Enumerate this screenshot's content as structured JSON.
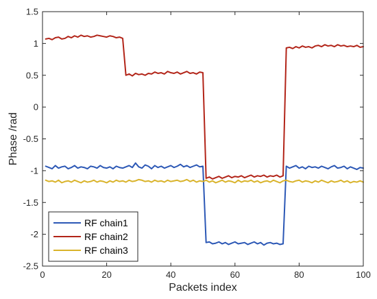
{
  "chart_data": {
    "type": "line",
    "title": "",
    "xlabel": "Packets index",
    "ylabel": "Phase /rad",
    "xlim": [
      0,
      100
    ],
    "ylim": [
      -2.5,
      1.5
    ],
    "xticks": [
      0,
      20,
      40,
      60,
      80,
      100
    ],
    "yticks": [
      -2.5,
      -2,
      -1.5,
      -1,
      -0.5,
      0,
      0.5,
      1,
      1.5
    ],
    "xtick_labels": [
      "0",
      "20",
      "40",
      "60",
      "80",
      "100"
    ],
    "ytick_labels": [
      "-2.5",
      "-2",
      "-1.5",
      "-1",
      "-0.5",
      "0",
      "0.5",
      "1",
      "1.5"
    ],
    "grid": false,
    "legend_position": "bottom-left",
    "x": [
      1,
      2,
      3,
      4,
      5,
      6,
      7,
      8,
      9,
      10,
      11,
      12,
      13,
      14,
      15,
      16,
      17,
      18,
      19,
      20,
      21,
      22,
      23,
      24,
      25,
      26,
      27,
      28,
      29,
      30,
      31,
      32,
      33,
      34,
      35,
      36,
      37,
      38,
      39,
      40,
      41,
      42,
      43,
      44,
      45,
      46,
      47,
      48,
      49,
      50,
      51,
      52,
      53,
      54,
      55,
      56,
      57,
      58,
      59,
      60,
      61,
      62,
      63,
      64,
      65,
      66,
      67,
      68,
      69,
      70,
      71,
      72,
      73,
      74,
      75,
      76,
      77,
      78,
      79,
      80,
      81,
      82,
      83,
      84,
      85,
      86,
      87,
      88,
      89,
      90,
      91,
      92,
      93,
      94,
      95,
      96,
      97,
      98,
      99,
      100
    ],
    "series": [
      {
        "name": "RF chain1",
        "color": "#2b57b5",
        "values": [
          -0.93,
          -0.95,
          -0.97,
          -0.92,
          -0.96,
          -0.94,
          -0.93,
          -0.97,
          -0.95,
          -0.92,
          -0.96,
          -0.94,
          -0.95,
          -0.97,
          -0.93,
          -0.94,
          -0.96,
          -0.92,
          -0.95,
          -0.96,
          -0.94,
          -0.97,
          -0.93,
          -0.95,
          -0.96,
          -0.94,
          -0.92,
          -0.95,
          -0.88,
          -0.94,
          -0.96,
          -0.91,
          -0.93,
          -0.97,
          -0.92,
          -0.95,
          -0.93,
          -0.96,
          -0.94,
          -0.92,
          -0.95,
          -0.93,
          -0.9,
          -0.94,
          -0.92,
          -0.95,
          -0.93,
          -0.91,
          -0.94,
          -0.93,
          -2.13,
          -2.12,
          -2.15,
          -2.14,
          -2.12,
          -2.15,
          -2.13,
          -2.16,
          -2.14,
          -2.12,
          -2.15,
          -2.14,
          -2.13,
          -2.16,
          -2.14,
          -2.12,
          -2.15,
          -2.13,
          -2.17,
          -2.14,
          -2.13,
          -2.15,
          -2.14,
          -2.16,
          -2.15,
          -0.93,
          -0.96,
          -0.94,
          -0.92,
          -0.96,
          -0.94,
          -0.97,
          -0.93,
          -0.95,
          -0.94,
          -0.96,
          -0.93,
          -0.95,
          -0.97,
          -0.94,
          -0.92,
          -0.96,
          -0.95,
          -0.93,
          -0.97,
          -0.94,
          -0.96,
          -0.98,
          -0.95,
          -0.96
        ]
      },
      {
        "name": "RF chain2",
        "color": "#b22418",
        "values": [
          1.07,
          1.08,
          1.06,
          1.09,
          1.1,
          1.07,
          1.08,
          1.11,
          1.09,
          1.12,
          1.1,
          1.13,
          1.11,
          1.12,
          1.1,
          1.11,
          1.13,
          1.12,
          1.11,
          1.1,
          1.12,
          1.11,
          1.09,
          1.1,
          1.08,
          0.5,
          0.52,
          0.49,
          0.53,
          0.51,
          0.52,
          0.5,
          0.53,
          0.52,
          0.55,
          0.53,
          0.54,
          0.52,
          0.56,
          0.54,
          0.53,
          0.55,
          0.52,
          0.54,
          0.56,
          0.53,
          0.54,
          0.52,
          0.55,
          0.54,
          -1.12,
          -1.1,
          -1.13,
          -1.11,
          -1.09,
          -1.12,
          -1.1,
          -1.08,
          -1.11,
          -1.09,
          -1.1,
          -1.08,
          -1.11,
          -1.09,
          -1.07,
          -1.1,
          -1.08,
          -1.09,
          -1.07,
          -1.1,
          -1.08,
          -1.09,
          -1.07,
          -1.1,
          -1.08,
          0.93,
          0.94,
          0.92,
          0.95,
          0.93,
          0.96,
          0.94,
          0.95,
          0.93,
          0.96,
          0.97,
          0.95,
          0.98,
          0.96,
          0.97,
          0.95,
          0.98,
          0.96,
          0.97,
          0.95,
          0.96,
          0.95,
          0.97,
          0.94,
          0.95
        ]
      },
      {
        "name": "RF chain3",
        "color": "#d9b32a",
        "values": [
          -1.15,
          -1.17,
          -1.16,
          -1.18,
          -1.15,
          -1.19,
          -1.17,
          -1.16,
          -1.18,
          -1.15,
          -1.17,
          -1.19,
          -1.16,
          -1.18,
          -1.17,
          -1.15,
          -1.18,
          -1.16,
          -1.17,
          -1.19,
          -1.16,
          -1.18,
          -1.15,
          -1.17,
          -1.16,
          -1.18,
          -1.15,
          -1.17,
          -1.16,
          -1.14,
          -1.15,
          -1.17,
          -1.16,
          -1.18,
          -1.15,
          -1.17,
          -1.16,
          -1.18,
          -1.15,
          -1.17,
          -1.16,
          -1.15,
          -1.17,
          -1.16,
          -1.14,
          -1.17,
          -1.15,
          -1.18,
          -1.16,
          -1.17,
          -1.15,
          -1.18,
          -1.16,
          -1.19,
          -1.17,
          -1.15,
          -1.18,
          -1.16,
          -1.17,
          -1.19,
          -1.15,
          -1.18,
          -1.16,
          -1.17,
          -1.15,
          -1.18,
          -1.16,
          -1.19,
          -1.17,
          -1.16,
          -1.18,
          -1.15,
          -1.17,
          -1.19,
          -1.16,
          -1.15,
          -1.17,
          -1.18,
          -1.16,
          -1.15,
          -1.18,
          -1.16,
          -1.17,
          -1.19,
          -1.16,
          -1.18,
          -1.15,
          -1.17,
          -1.19,
          -1.16,
          -1.18,
          -1.17,
          -1.15,
          -1.18,
          -1.16,
          -1.19,
          -1.17,
          -1.18,
          -1.16,
          -1.18
        ]
      }
    ]
  }
}
